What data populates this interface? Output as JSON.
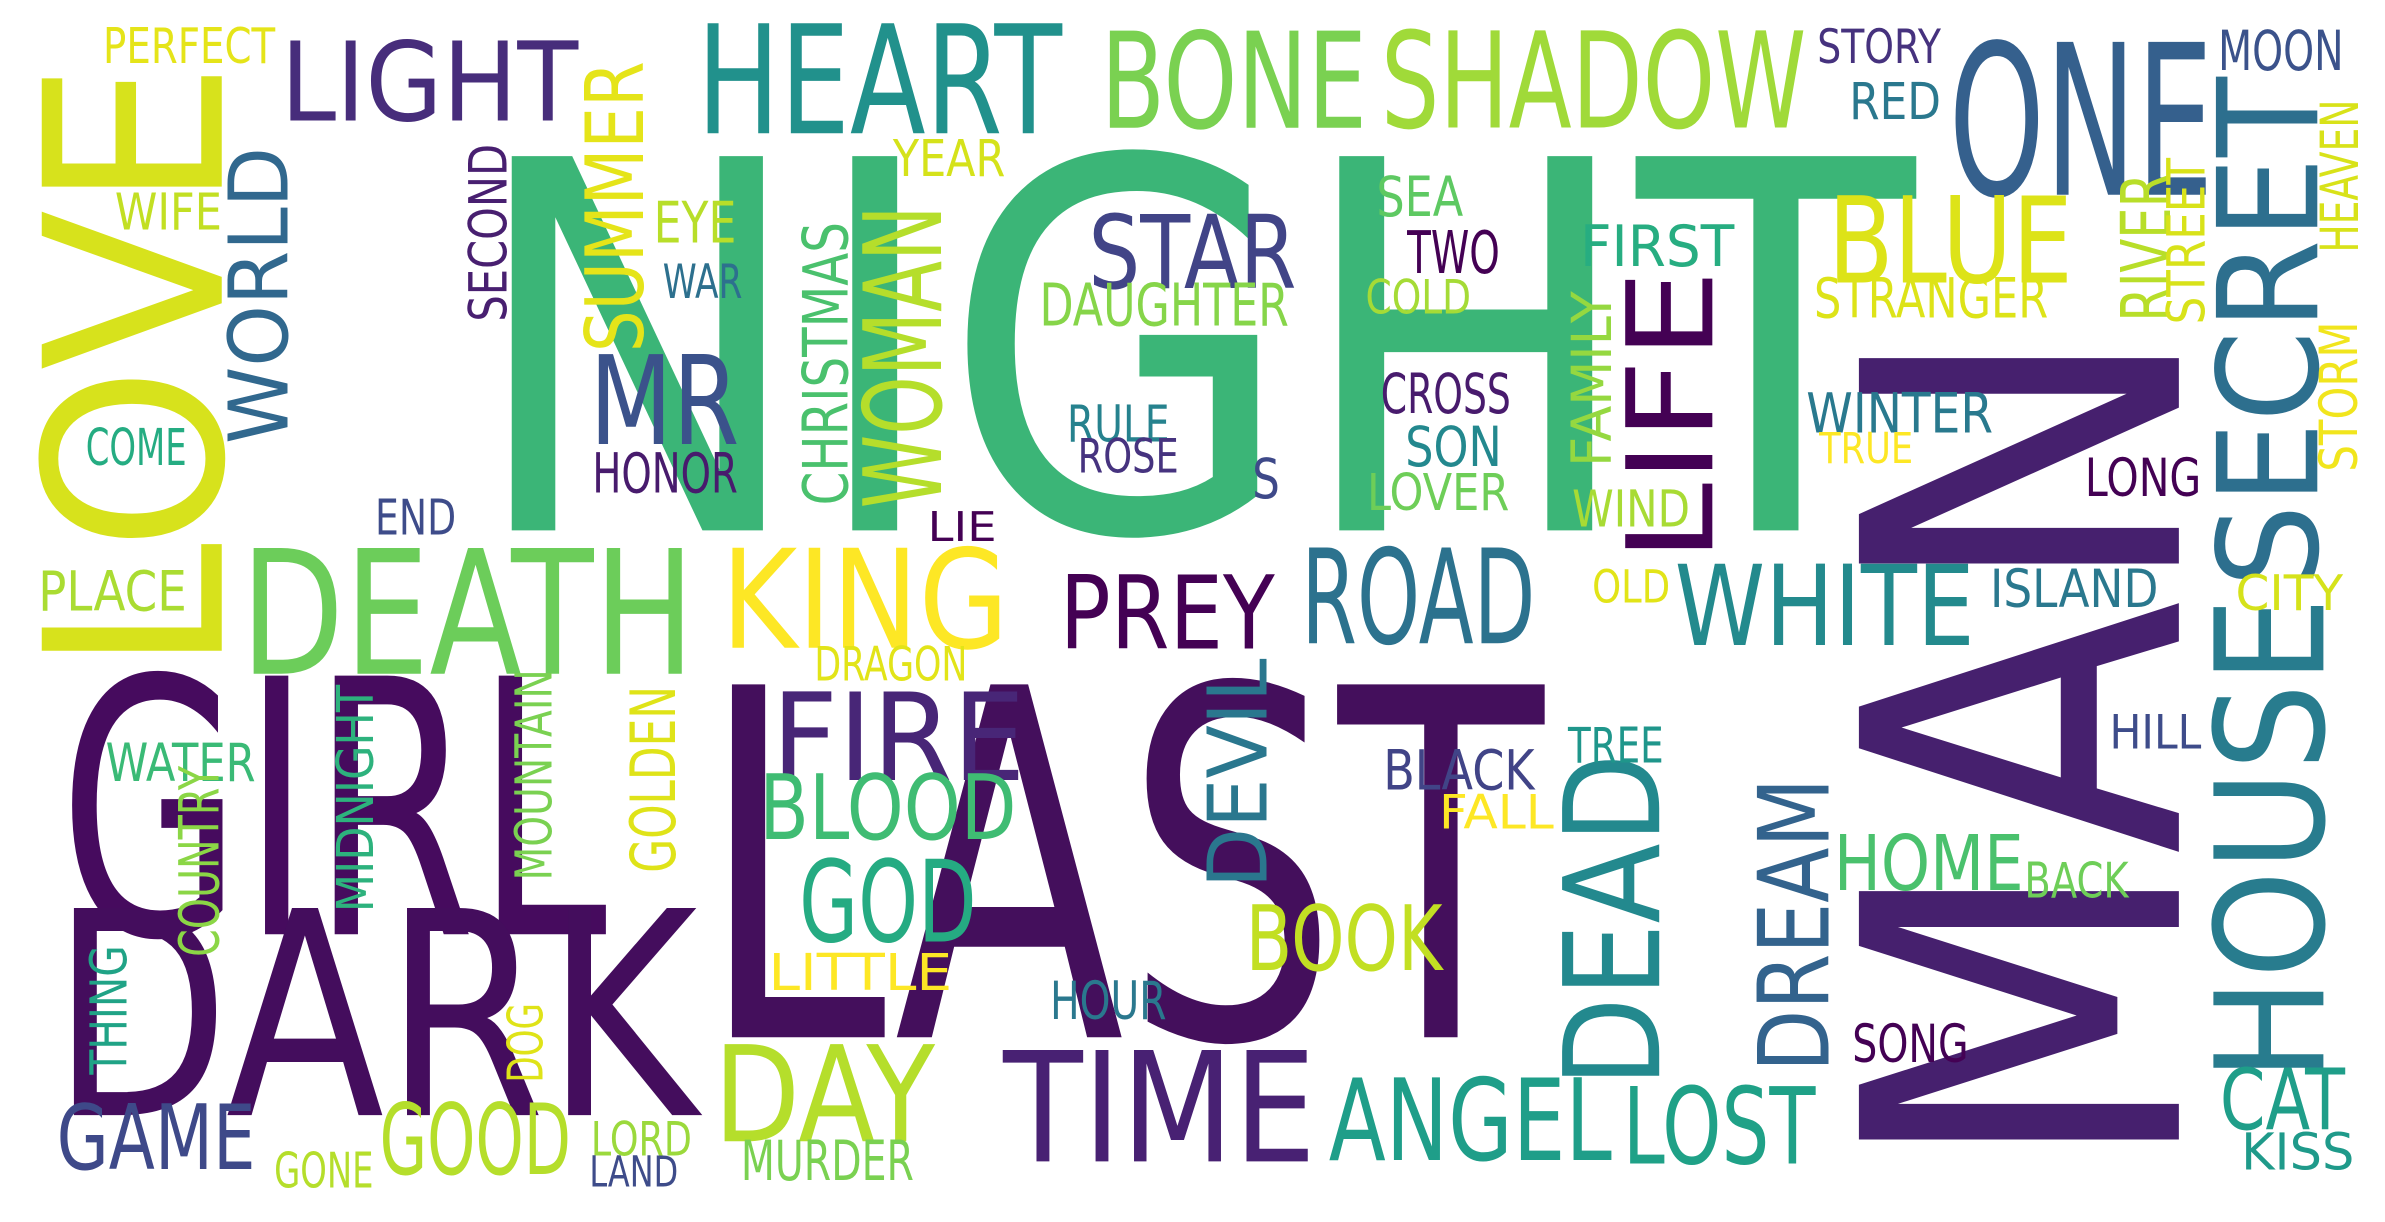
{
  "palette": {
    "dark_purple": "#440154",
    "indigo": "#482878",
    "purple_blue": "#3e4989",
    "slate_blue": "#31688e",
    "teal_blue": "#26828e",
    "teal": "#1f9e89",
    "green_teal": "#35b779",
    "green": "#6ece58",
    "lime": "#b5de2b",
    "yellow": "#fde725"
  },
  "words": [
    {
      "text": "NIGHT",
      "color": "#3bb577"
    },
    {
      "text": "LAST",
      "color": "#440f5c"
    },
    {
      "text": "MAN",
      "color": "#46206e"
    },
    {
      "text": "LOVE",
      "color": "#d7e21c"
    },
    {
      "text": "GIRL",
      "color": "#460b5e"
    },
    {
      "text": "DARK",
      "color": "#440d5d"
    },
    {
      "text": "DEATH",
      "color": "#6ccd5a"
    },
    {
      "text": "SECRET",
      "color": "#2d6f8e"
    },
    {
      "text": "HOUSE",
      "color": "#287c8e"
    },
    {
      "text": "ONE",
      "color": "#35608d"
    },
    {
      "text": "HEART",
      "color": "#21918c"
    },
    {
      "text": "BONE",
      "color": "#7ad151"
    },
    {
      "text": "SHADOW",
      "color": "#a0da39"
    },
    {
      "text": "LIGHT",
      "color": "#472d7b"
    },
    {
      "text": "KING",
      "color": "#fde725"
    },
    {
      "text": "TIME",
      "color": "#482173"
    },
    {
      "text": "DEAD",
      "color": "#23898e"
    },
    {
      "text": "LIFE",
      "color": "#440154"
    },
    {
      "text": "ROAD",
      "color": "#2c728e"
    },
    {
      "text": "WHITE",
      "color": "#238a8d"
    },
    {
      "text": "DAY",
      "color": "#b5de2b"
    },
    {
      "text": "ANGEL",
      "color": "#1f9e89"
    },
    {
      "text": "FIRE",
      "color": "#482677"
    },
    {
      "text": "GOD",
      "color": "#25ab82"
    },
    {
      "text": "BLUE",
      "color": "#dde318"
    },
    {
      "text": "PREY",
      "color": "#440154"
    },
    {
      "text": "WOMAN",
      "color": "#b5de2b"
    },
    {
      "text": "MR",
      "color": "#3b528b"
    },
    {
      "text": "STAR",
      "color": "#414487"
    },
    {
      "text": "BLOOD",
      "color": "#3fbc73"
    },
    {
      "text": "BOOK",
      "color": "#c2df23"
    },
    {
      "text": "DREAM",
      "color": "#33638d"
    },
    {
      "text": "LOST",
      "color": "#1fa187"
    },
    {
      "text": "GOOD",
      "color": "#b5de2b"
    },
    {
      "text": "GAME",
      "color": "#3e4989"
    },
    {
      "text": "CAT",
      "color": "#1f9e89"
    },
    {
      "text": "HOME",
      "color": "#4ac16d"
    },
    {
      "text": "SUMMER",
      "color": "#e5e419"
    },
    {
      "text": "WORLD",
      "color": "#31688e"
    },
    {
      "text": "DEVIL",
      "color": "#2a778e"
    },
    {
      "text": "CHRISTMAS",
      "color": "#4ac16d"
    },
    {
      "text": "PERFECT",
      "color": "#e5e419"
    },
    {
      "text": "WIFE",
      "color": "#c2df23"
    },
    {
      "text": "SECOND",
      "color": "#481f70"
    },
    {
      "text": "YEAR",
      "color": "#d5e21a"
    },
    {
      "text": "EYE",
      "color": "#b8de29"
    },
    {
      "text": "WAR",
      "color": "#2d708e"
    },
    {
      "text": "DAUGHTER",
      "color": "#86d549"
    },
    {
      "text": "SEA",
      "color": "#5ec962"
    },
    {
      "text": "TWO",
      "color": "#440154"
    },
    {
      "text": "COLD",
      "color": "#a5db36"
    },
    {
      "text": "FIRST",
      "color": "#27ad81"
    },
    {
      "text": "STRANGER",
      "color": "#dde318"
    },
    {
      "text": "STORY",
      "color": "#46327e"
    },
    {
      "text": "RED",
      "color": "#2a788e"
    },
    {
      "text": "MOON",
      "color": "#3b528b"
    },
    {
      "text": "HEAVEN",
      "color": "#d8e219"
    },
    {
      "text": "RIVER",
      "color": "#b8de29"
    },
    {
      "text": "STREET",
      "color": "#d8e219"
    },
    {
      "text": "STORM",
      "color": "#f1e51d"
    },
    {
      "text": "COME",
      "color": "#25ac82"
    },
    {
      "text": "CROSS",
      "color": "#481b6d"
    },
    {
      "text": "RULE",
      "color": "#26828e"
    },
    {
      "text": "ROSE",
      "color": "#46337f"
    },
    {
      "text": "SON",
      "color": "#23888e"
    },
    {
      "text": "FAMILY",
      "color": "#95d840"
    },
    {
      "text": "WINTER",
      "color": "#29798e"
    },
    {
      "text": "TRUE",
      "color": "#fde725"
    },
    {
      "text": "LONG",
      "color": "#440154"
    },
    {
      "text": "HONOR",
      "color": "#481b6d"
    },
    {
      "text": "END",
      "color": "#3e4c8a"
    },
    {
      "text": "S",
      "color": "#3e4989"
    },
    {
      "text": "LOVER",
      "color": "#6ece58"
    },
    {
      "text": "WIND",
      "color": "#a8db34"
    },
    {
      "text": "LIE",
      "color": "#440154"
    },
    {
      "text": "PLACE",
      "color": "#aadc32"
    },
    {
      "text": "OLD",
      "color": "#e2e418"
    },
    {
      "text": "ISLAND",
      "color": "#2a788e"
    },
    {
      "text": "CITY",
      "color": "#d5e21a"
    },
    {
      "text": "DRAGON",
      "color": "#e2e418"
    },
    {
      "text": "BLACK",
      "color": "#414487"
    },
    {
      "text": "TREE",
      "color": "#1f968b"
    },
    {
      "text": "HILL",
      "color": "#3e4c8a"
    },
    {
      "text": "FALL",
      "color": "#fde725"
    },
    {
      "text": "WATER",
      "color": "#3aba76"
    },
    {
      "text": "MIDNIGHT",
      "color": "#2db27d"
    },
    {
      "text": "MOUNTAIN",
      "color": "#7ad151"
    },
    {
      "text": "GOLDEN",
      "color": "#dfe318"
    },
    {
      "text": "COUNTRY",
      "color": "#8bd646"
    },
    {
      "text": "LITTLE",
      "color": "#fde725"
    },
    {
      "text": "BACK",
      "color": "#6ece58"
    },
    {
      "text": "THING",
      "color": "#20a386"
    },
    {
      "text": "HOUR",
      "color": "#2a788e"
    },
    {
      "text": "SONG",
      "color": "#440154"
    },
    {
      "text": "DOG",
      "color": "#dfe318"
    },
    {
      "text": "LORD",
      "color": "#9bd93c"
    },
    {
      "text": "LAND",
      "color": "#3e4c8a"
    },
    {
      "text": "GONE",
      "color": "#b5de2b"
    },
    {
      "text": "MURDER",
      "color": "#7ad151"
    },
    {
      "text": "KISS",
      "color": "#1f9a8a"
    }
  ]
}
